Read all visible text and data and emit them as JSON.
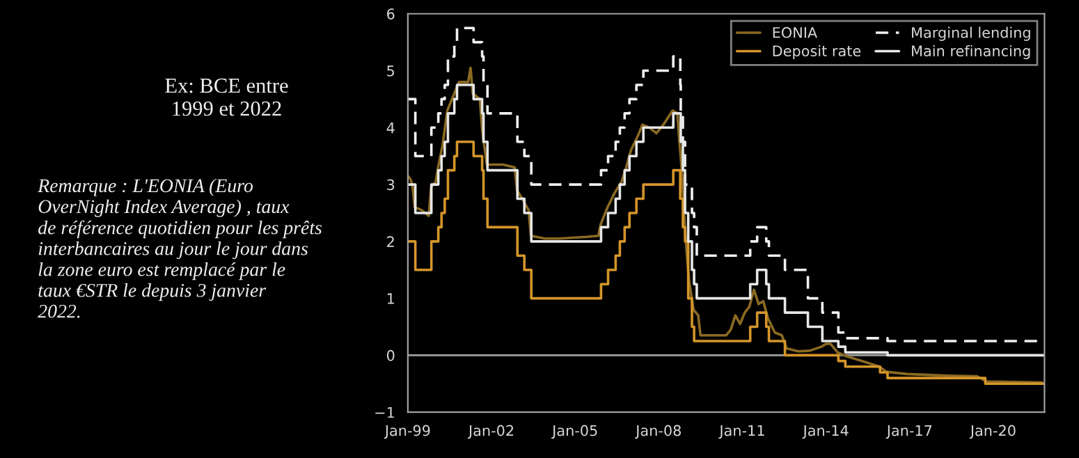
{
  "chart_data": {
    "type": "step",
    "annotations": [
      "Ex: BCE entre\n1999 et 2022",
      "Remarque : L'EONIA (Euro\nOverNight Index Average) , taux\nde référence quotidien pour les prêts\ninterbancaires au jour le jour dans\nla zone euro est remplacé par le\ntaux €STR le depuis 3 janvier\n2022."
    ],
    "xlim": [
      "1999-01-01",
      "2021-11-01"
    ],
    "xticks": [
      {
        "value": "1999-01-01",
        "label": "Jan-99"
      },
      {
        "value": "2002-01-01",
        "label": "Jan-02"
      },
      {
        "value": "2005-01-01",
        "label": "Jan-05"
      },
      {
        "value": "2008-01-01",
        "label": "Jan-08"
      },
      {
        "value": "2011-01-01",
        "label": "Jan-11"
      },
      {
        "value": "2014-01-01",
        "label": "Jan-14"
      },
      {
        "value": "2017-01-01",
        "label": "Jan-17"
      },
      {
        "value": "2020-01-01",
        "label": "Jan-20"
      }
    ],
    "ylim": [
      -1,
      6
    ],
    "yticks": [
      -1,
      0,
      1,
      2,
      3,
      4,
      5,
      6
    ],
    "grid": false,
    "legend": "top right",
    "ref_lines": [
      {
        "axis": "y",
        "value": 0,
        "color": "#a0a0a0",
        "line_style": "solid"
      }
    ],
    "series": [
      {
        "name": "EONIA",
        "type": "line",
        "color": "#8a6a22",
        "line_style": "solid",
        "x": [
          "1999-01",
          "1999-02",
          "1999-03",
          "1999-04",
          "1999-07",
          "1999-10",
          "1999-11",
          "2000-01",
          "2000-02",
          "2000-04",
          "2000-06",
          "2000-09",
          "2000-11",
          "2001-03",
          "2001-04",
          "2001-05",
          "2001-08",
          "2001-09",
          "2001-11",
          "2002-06",
          "2002-11",
          "2002-12",
          "2003-03",
          "2003-05",
          "2003-06",
          "2003-12",
          "2004-06",
          "2005-06",
          "2005-11",
          "2005-12",
          "2006-03",
          "2006-06",
          "2006-09",
          "2006-11",
          "2007-01",
          "2007-04",
          "2007-06",
          "2007-09",
          "2007-12",
          "2008-03",
          "2008-07",
          "2008-09",
          "2008-10",
          "2008-11",
          "2008-12",
          "2009-01",
          "2009-02",
          "2009-04",
          "2009-06",
          "2009-07",
          "2010-01",
          "2010-06",
          "2010-08",
          "2010-10",
          "2010-12",
          "2011-02",
          "2011-04",
          "2011-06",
          "2011-08",
          "2011-10",
          "2011-12",
          "2012-03",
          "2012-06",
          "2012-08",
          "2013-01",
          "2013-06",
          "2013-11",
          "2014-01",
          "2014-03",
          "2014-06",
          "2014-10",
          "2015-06",
          "2015-12",
          "2016-03",
          "2016-12",
          "2018-06",
          "2019-06",
          "2019-10",
          "2021-10"
        ],
        "values": [
          3.15,
          3.1,
          3.0,
          2.6,
          2.55,
          2.45,
          2.95,
          3.05,
          3.3,
          3.7,
          4.3,
          4.6,
          4.8,
          4.8,
          5.05,
          4.6,
          4.5,
          3.95,
          3.35,
          3.35,
          3.3,
          2.9,
          2.7,
          2.55,
          2.1,
          2.05,
          2.05,
          2.08,
          2.1,
          2.3,
          2.6,
          2.85,
          3.05,
          3.3,
          3.6,
          3.85,
          4.05,
          4.0,
          3.9,
          4.05,
          4.3,
          4.25,
          3.7,
          3.2,
          2.4,
          1.8,
          1.3,
          0.8,
          0.7,
          0.35,
          0.35,
          0.35,
          0.45,
          0.7,
          0.55,
          0.75,
          0.85,
          1.15,
          0.9,
          0.95,
          0.65,
          0.4,
          0.35,
          0.12,
          0.07,
          0.08,
          0.15,
          0.2,
          0.2,
          0.05,
          -0.02,
          -0.12,
          -0.2,
          -0.29,
          -0.33,
          -0.36,
          -0.37,
          -0.46,
          -0.48
        ]
      },
      {
        "name": "Deposit rate",
        "color": "#d4952a",
        "line_style": "solid",
        "x": [
          "1999-01-01",
          "1999-04-09",
          "1999-11-05",
          "2000-02-04",
          "2000-03-17",
          "2000-04-28",
          "2000-06-09",
          "2000-09-01",
          "2000-10-06",
          "2001-05-11",
          "2001-08-31",
          "2001-09-18",
          "2001-11-09",
          "2002-12-06",
          "2003-03-07",
          "2003-06-06",
          "2005-12-06",
          "2006-03-08",
          "2006-06-15",
          "2006-08-09",
          "2006-10-11",
          "2006-12-13",
          "2007-03-14",
          "2007-06-13",
          "2008-07-09",
          "2008-10-08",
          "2008-11-12",
          "2008-12-10",
          "2009-01-21",
          "2009-03-11",
          "2009-04-08",
          "2011-04-13",
          "2011-07-13",
          "2011-11-09",
          "2011-12-14",
          "2012-07-11",
          "2014-06-11",
          "2014-09-10",
          "2015-12-09",
          "2016-03-16",
          "2019-09-18",
          "2021-11-01"
        ],
        "values": [
          2.0,
          1.5,
          2.0,
          2.25,
          2.5,
          2.75,
          3.25,
          3.5,
          3.75,
          3.5,
          3.25,
          2.75,
          2.25,
          1.75,
          1.5,
          1.0,
          1.25,
          1.5,
          1.75,
          2.0,
          2.25,
          2.5,
          2.75,
          3.0,
          3.25,
          2.75,
          2.25,
          2.0,
          1.0,
          0.5,
          0.25,
          0.5,
          0.75,
          0.5,
          0.25,
          0.0,
          -0.1,
          -0.2,
          -0.3,
          -0.4,
          -0.5,
          -0.5
        ]
      },
      {
        "name": "Marginal lending",
        "color": "#f0f0f0",
        "line_style": "dashed",
        "x": [
          "1999-01-01",
          "1999-04-09",
          "1999-11-05",
          "2000-02-04",
          "2000-03-17",
          "2000-04-28",
          "2000-06-09",
          "2000-09-01",
          "2000-10-06",
          "2001-05-11",
          "2001-08-31",
          "2001-09-18",
          "2001-11-09",
          "2002-12-06",
          "2003-03-07",
          "2003-06-06",
          "2005-12-06",
          "2006-03-08",
          "2006-06-15",
          "2006-08-09",
          "2006-10-11",
          "2006-12-13",
          "2007-03-14",
          "2007-06-13",
          "2008-07-09",
          "2008-10-09",
          "2008-10-15",
          "2008-11-12",
          "2008-12-10",
          "2009-03-11",
          "2009-04-08",
          "2009-05-13",
          "2011-04-13",
          "2011-07-13",
          "2011-11-09",
          "2011-12-14",
          "2012-07-11",
          "2013-05-08",
          "2013-11-13",
          "2014-06-11",
          "2014-09-10",
          "2016-03-16",
          "2021-11-01"
        ],
        "values": [
          4.5,
          3.5,
          4.0,
          4.25,
          4.5,
          4.75,
          5.25,
          5.5,
          5.75,
          5.5,
          5.25,
          4.75,
          4.25,
          3.75,
          3.5,
          3.0,
          3.25,
          3.5,
          3.75,
          4.0,
          4.25,
          4.5,
          4.75,
          5.0,
          5.25,
          4.75,
          4.25,
          3.75,
          3.0,
          2.5,
          2.25,
          1.75,
          2.0,
          2.25,
          2.0,
          1.75,
          1.5,
          1.0,
          0.75,
          0.4,
          0.3,
          0.25,
          0.25
        ]
      },
      {
        "name": "Main refinancing",
        "color": "#e6e6e6",
        "line_style": "solid",
        "x": [
          "1999-01-01",
          "1999-04-09",
          "1999-11-05",
          "2000-02-04",
          "2000-03-17",
          "2000-04-28",
          "2000-06-09",
          "2000-09-01",
          "2000-10-06",
          "2001-05-11",
          "2001-08-31",
          "2001-09-18",
          "2001-11-09",
          "2002-12-06",
          "2003-03-07",
          "2003-06-06",
          "2005-12-06",
          "2006-03-08",
          "2006-06-15",
          "2006-08-09",
          "2006-10-11",
          "2006-12-13",
          "2007-03-14",
          "2007-06-13",
          "2008-07-09",
          "2008-10-15",
          "2008-11-12",
          "2008-12-10",
          "2009-01-21",
          "2009-03-11",
          "2009-04-08",
          "2009-05-13",
          "2011-04-13",
          "2011-07-13",
          "2011-11-09",
          "2011-12-14",
          "2012-07-11",
          "2013-05-08",
          "2013-11-13",
          "2014-06-11",
          "2014-09-10",
          "2016-03-16",
          "2021-11-01"
        ],
        "values": [
          3.0,
          2.5,
          3.0,
          3.25,
          3.5,
          3.75,
          4.25,
          4.5,
          4.75,
          4.5,
          4.25,
          3.75,
          3.25,
          2.75,
          2.5,
          2.0,
          2.25,
          2.5,
          2.75,
          3.0,
          3.25,
          3.5,
          3.75,
          4.0,
          4.25,
          3.75,
          3.25,
          2.5,
          2.0,
          1.5,
          1.25,
          1.0,
          1.25,
          1.5,
          1.25,
          1.0,
          0.75,
          0.5,
          0.25,
          0.15,
          0.05,
          0.0,
          0.0
        ]
      }
    ]
  }
}
